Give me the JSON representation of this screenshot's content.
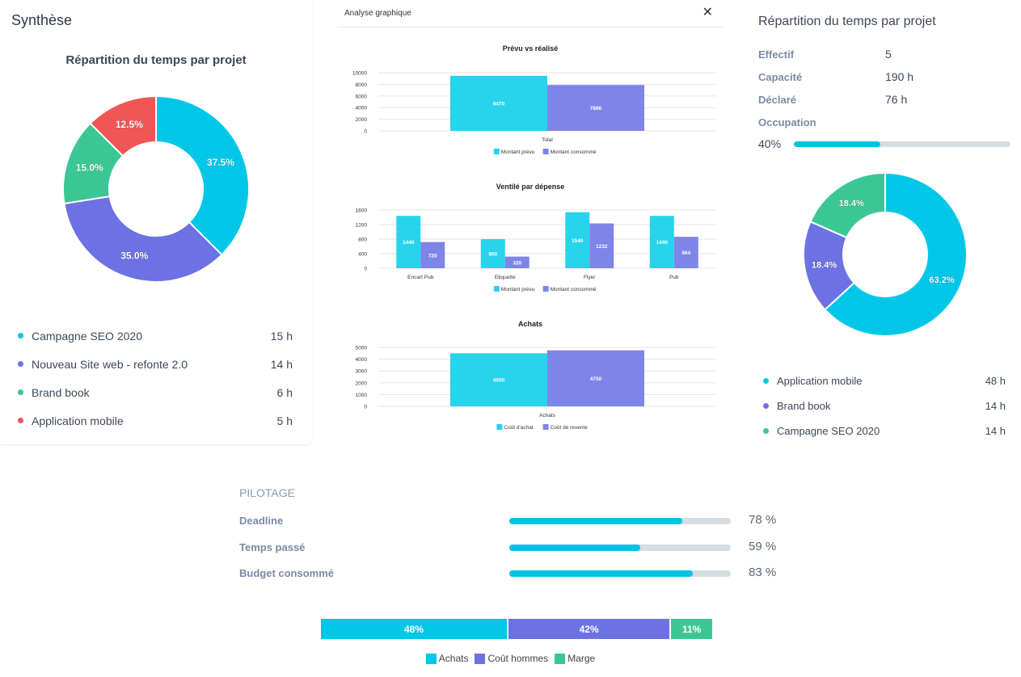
{
  "synthese": {
    "title": "Synthèse",
    "chart_title": "Répartition du temps par projet",
    "chart_data": {
      "type": "pie",
      "title": "Répartition du temps par projet",
      "categories": [
        "Campagne SEO 2020",
        "Nouveau Site web - refonte 2.0",
        "Brand book",
        "Application mobile"
      ],
      "values": [
        37.5,
        35.0,
        15.0,
        12.5
      ],
      "labels": [
        "37.5%",
        "35.0%",
        "15.0%",
        "12.5%"
      ],
      "colors": [
        "#00c7e8",
        "#6c72e3",
        "#3bc795",
        "#f15656"
      ]
    },
    "legend": [
      {
        "label": "Campagne SEO 2020",
        "value": "15 h",
        "color": "#00c7e8"
      },
      {
        "label": "Nouveau Site web - refonte 2.0",
        "value": "14 h",
        "color": "#6c72e3"
      },
      {
        "label": "Brand book",
        "value": "6 h",
        "color": "#3bc795"
      },
      {
        "label": "Application mobile",
        "value": "5 h",
        "color": "#f15656"
      }
    ]
  },
  "modal": {
    "title": "Analyse graphique",
    "close_icon": "close-icon",
    "charts": [
      {
        "type": "bar",
        "title": "Prévu vs réalisé",
        "categories": [
          "Total"
        ],
        "series": [
          {
            "name": "Montant prévu",
            "values": [
              9470
            ],
            "color": "#28d3ec"
          },
          {
            "name": "Montant consommé",
            "values": [
              7886
            ],
            "color": "#7f84e8"
          }
        ],
        "yticks": [
          "10000",
          "8000",
          "6000",
          "4000",
          "2000",
          "0"
        ],
        "ylim": [
          0,
          10000
        ]
      },
      {
        "type": "bar",
        "title": "Ventilé par dépense",
        "categories": [
          "Encart Pub",
          "Etiquette",
          "Flyer",
          "Pub"
        ],
        "series": [
          {
            "name": "Montant prévu",
            "values": [
              1440,
              800,
              1540,
              1440
            ],
            "color": "#28d3ec"
          },
          {
            "name": "Montant consommé",
            "values": [
              720,
              320,
              1232,
              864
            ],
            "color": "#7f84e8"
          }
        ],
        "yticks": [
          "1600",
          "1200",
          "800",
          "400",
          "0"
        ],
        "ylim": [
          0,
          1600
        ]
      },
      {
        "type": "bar",
        "title": "Achats",
        "categories": [
          "Achats"
        ],
        "series": [
          {
            "name": "Coût d'achat",
            "values": [
              4500
            ],
            "color": "#28d3ec"
          },
          {
            "name": "Coût de revente",
            "values": [
              4750
            ],
            "color": "#7f84e8"
          }
        ],
        "yticks": [
          "5000",
          "4000",
          "3000",
          "2000",
          "1000",
          "0"
        ],
        "ylim": [
          0,
          5000
        ]
      }
    ]
  },
  "right": {
    "title": "Répartition du temps par projet",
    "stats": [
      {
        "label": "Effectif",
        "value": "5"
      },
      {
        "label": "Capacité",
        "value": "190 h"
      },
      {
        "label": "Déclaré",
        "value": "76 h"
      }
    ],
    "occupation_label": "Occupation",
    "occupation_value": "40%",
    "occupation_fraction": 0.4,
    "chart_data": {
      "type": "pie",
      "categories": [
        "Application mobile",
        "Brand book",
        "Campagne SEO 2020"
      ],
      "values": [
        63.2,
        18.4,
        18.4
      ],
      "labels": [
        "63.2%",
        "18.4%",
        "18.4%"
      ],
      "colors": [
        "#00c7e8",
        "#6c72e3",
        "#3bc795"
      ]
    },
    "legend": [
      {
        "label": "Application mobile",
        "value": "48 h",
        "color": "#00c7e8"
      },
      {
        "label": "Brand book",
        "value": "14 h",
        "color": "#6c72e3"
      },
      {
        "label": "Campagne SEO 2020",
        "value": "14 h",
        "color": "#3bc795"
      }
    ]
  },
  "pilotage": {
    "title": "PILOTAGE",
    "rows": [
      {
        "label": "Deadline",
        "value": "78 %",
        "fraction": 0.78
      },
      {
        "label": "Temps passé",
        "value": "59 %",
        "fraction": 0.59
      },
      {
        "label": "Budget consommé",
        "value": "83 %",
        "fraction": 0.83
      }
    ]
  },
  "repartition": {
    "chart_data": {
      "type": "bar",
      "stacked": true,
      "categories": [
        "Achats",
        "Coût hommes",
        "Marge"
      ],
      "values": [
        48,
        42,
        11
      ],
      "labels": [
        "48%",
        "42%",
        "11%"
      ],
      "colors": [
        "#00c7e8",
        "#6c72e3",
        "#3bc795"
      ]
    }
  }
}
